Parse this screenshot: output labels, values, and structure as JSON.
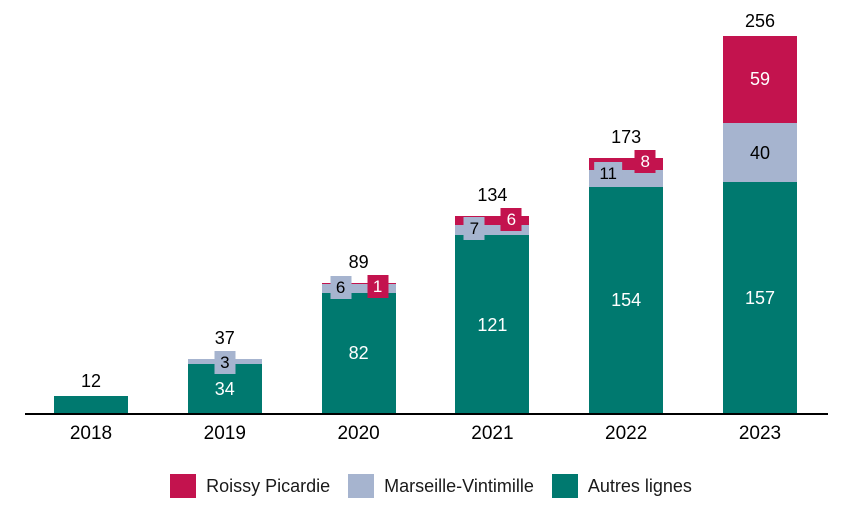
{
  "chart_data": {
    "type": "bar",
    "stacked": true,
    "title": "",
    "xlabel": "",
    "ylabel": "",
    "grid": false,
    "legend_position": "bottom",
    "categories": [
      "2018",
      "2019",
      "2020",
      "2021",
      "2022",
      "2023"
    ],
    "series": [
      {
        "name": "Roissy Picardie",
        "color": "#C3134E",
        "text_color": "#ffffff",
        "values": [
          0,
          0,
          1,
          6,
          8,
          59
        ]
      },
      {
        "name": "Marseille-Vintimille",
        "color": "#A6B4CF",
        "text_color": "#000000",
        "values": [
          0,
          3,
          6,
          7,
          11,
          40
        ]
      },
      {
        "name": "Autres lignes",
        "color": "#00796F",
        "text_color": "#ffffff",
        "values": [
          12,
          34,
          82,
          121,
          154,
          157
        ]
      }
    ],
    "totals": [
      12,
      37,
      89,
      134,
      173,
      256
    ],
    "ylim": [
      0,
      280
    ],
    "axis_color": "#000000",
    "label_color": "#000000"
  }
}
